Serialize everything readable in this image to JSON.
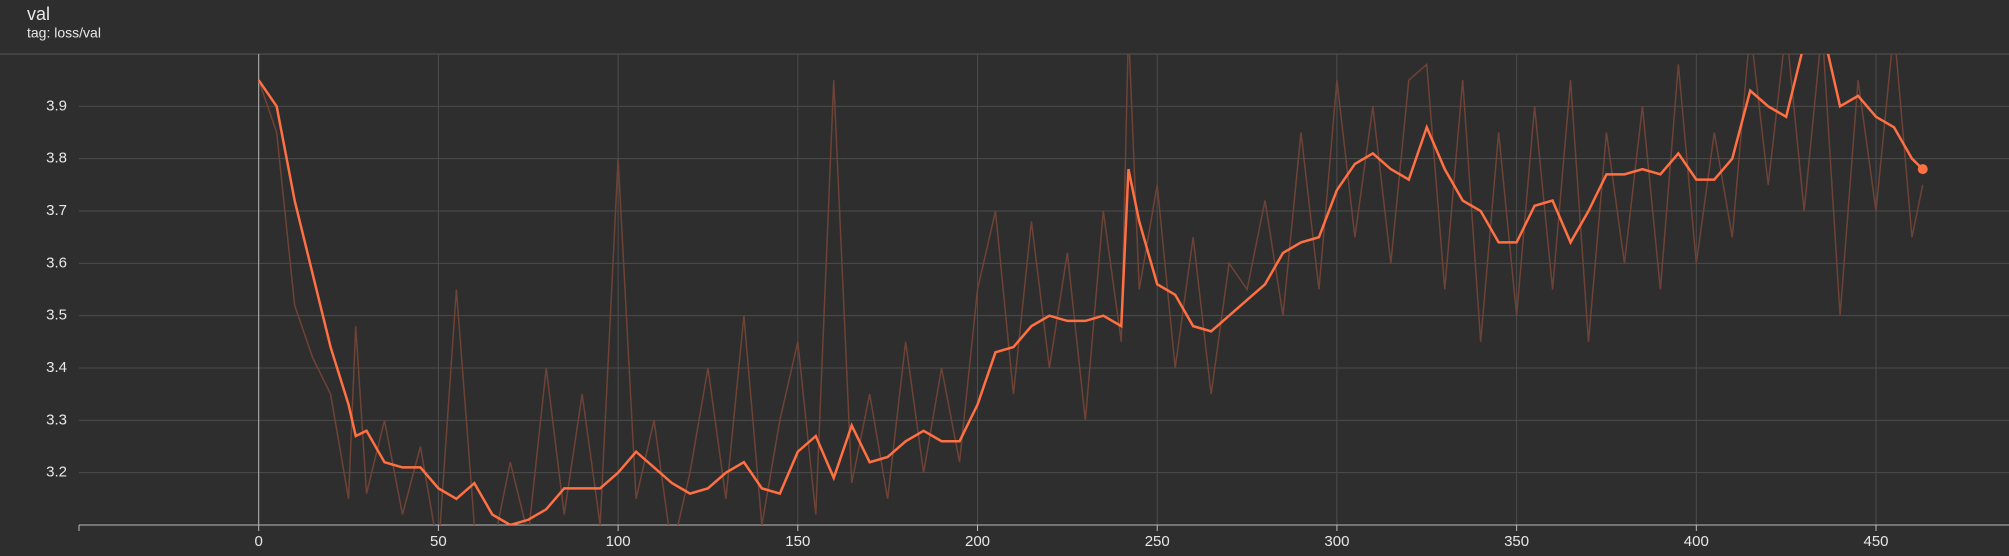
{
  "chart_data": {
    "type": "line",
    "title": "val",
    "subtitle": "tag: loss/val",
    "x": [
      0,
      5,
      10,
      15,
      20,
      25,
      27,
      30,
      35,
      40,
      45,
      50,
      55,
      60,
      65,
      70,
      75,
      80,
      85,
      90,
      95,
      100,
      105,
      110,
      115,
      120,
      125,
      130,
      135,
      140,
      145,
      150,
      155,
      160,
      165,
      170,
      175,
      180,
      185,
      190,
      195,
      200,
      205,
      210,
      215,
      220,
      225,
      230,
      235,
      240,
      242,
      245,
      250,
      255,
      260,
      265,
      270,
      275,
      280,
      285,
      290,
      295,
      300,
      305,
      310,
      315,
      320,
      325,
      330,
      335,
      340,
      345,
      350,
      355,
      360,
      365,
      370,
      375,
      380,
      385,
      390,
      395,
      400,
      405,
      410,
      415,
      420,
      425,
      430,
      435,
      440,
      445,
      450,
      455,
      460,
      463
    ],
    "series": [
      {
        "name": "loss/val (raw)",
        "color": "#6e4336",
        "values": [
          3.95,
          3.85,
          3.52,
          3.42,
          3.35,
          3.15,
          3.48,
          3.16,
          3.3,
          3.12,
          3.25,
          3.05,
          3.55,
          3.1,
          3.05,
          3.22,
          3.08,
          3.4,
          3.12,
          3.35,
          3.1,
          3.8,
          3.15,
          3.3,
          3.05,
          3.2,
          3.4,
          3.15,
          3.5,
          3.1,
          3.3,
          3.45,
          3.12,
          3.95,
          3.18,
          3.35,
          3.15,
          3.45,
          3.2,
          3.4,
          3.22,
          3.55,
          3.7,
          3.35,
          3.68,
          3.4,
          3.62,
          3.3,
          3.7,
          3.45,
          4.05,
          3.55,
          3.75,
          3.4,
          3.65,
          3.35,
          3.6,
          3.55,
          3.72,
          3.5,
          3.85,
          3.55,
          3.95,
          3.65,
          3.9,
          3.6,
          3.95,
          3.98,
          3.55,
          3.95,
          3.45,
          3.85,
          3.5,
          3.9,
          3.55,
          3.95,
          3.45,
          3.85,
          3.6,
          3.9,
          3.55,
          3.98,
          3.6,
          3.85,
          3.65,
          4.05,
          3.75,
          4.05,
          3.7,
          4.05,
          3.5,
          3.95,
          3.7,
          4.05,
          3.65,
          3.75
        ]
      },
      {
        "name": "loss/val",
        "color": "#ff7043",
        "values": [
          3.95,
          3.9,
          3.72,
          3.58,
          3.44,
          3.33,
          3.27,
          3.28,
          3.22,
          3.21,
          3.21,
          3.17,
          3.15,
          3.18,
          3.12,
          3.1,
          3.11,
          3.13,
          3.17,
          3.17,
          3.17,
          3.2,
          3.24,
          3.21,
          3.18,
          3.16,
          3.17,
          3.2,
          3.22,
          3.17,
          3.16,
          3.24,
          3.27,
          3.19,
          3.29,
          3.22,
          3.23,
          3.26,
          3.28,
          3.26,
          3.26,
          3.33,
          3.43,
          3.44,
          3.48,
          3.5,
          3.49,
          3.49,
          3.5,
          3.48,
          3.78,
          3.68,
          3.56,
          3.54,
          3.48,
          3.47,
          3.5,
          3.53,
          3.56,
          3.62,
          3.64,
          3.65,
          3.74,
          3.79,
          3.81,
          3.78,
          3.76,
          3.86,
          3.78,
          3.72,
          3.7,
          3.64,
          3.64,
          3.71,
          3.72,
          3.64,
          3.7,
          3.77,
          3.77,
          3.78,
          3.77,
          3.81,
          3.76,
          3.76,
          3.8,
          3.93,
          3.9,
          3.88,
          4.02,
          4.05,
          3.9,
          3.92,
          3.88,
          3.86,
          3.8,
          3.78
        ]
      }
    ],
    "xlim": [
      -50,
      487
    ],
    "ylim": [
      3.1,
      4.0
    ],
    "xticks": [
      0,
      50,
      100,
      150,
      200,
      250,
      300,
      350,
      400,
      450
    ],
    "yticks": [
      3.2,
      3.3,
      3.4,
      3.5,
      3.6,
      3.7,
      3.8,
      3.9
    ],
    "grid": true
  }
}
